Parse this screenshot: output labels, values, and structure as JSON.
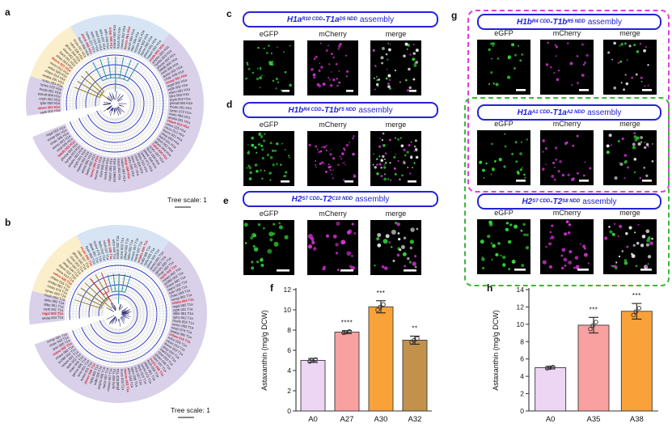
{
  "panels": {
    "a": "a",
    "b": "b",
    "c": "c",
    "d": "d",
    "e": "e",
    "f": "f",
    "g": "g",
    "h": "h"
  },
  "colors": {
    "title_blue": "#2323d9",
    "magenta_border": "#e03ce0",
    "green_border": "#3ab83a",
    "egfp_green": "#35d93c",
    "mcherry_magenta": "#d935d9",
    "merge_white": "#ededed",
    "tree_sector_lavender": "#d9d0ea",
    "tree_sector_cream": "#fbeecb",
    "tree_sector_blue": "#d6e4f4",
    "tree_circle_blue": "#2631c8"
  },
  "columns": [
    "eGFP",
    "mCherry",
    "merge"
  ],
  "trees": [
    {
      "panel": "a",
      "scale_text": "Tree scale: 1",
      "suffix": "H1a",
      "seed": 11,
      "gap": [
        248,
        262
      ],
      "sectors": [
        {
          "from": 330,
          "to": 38,
          "color": "#d6e4f4"
        },
        {
          "from": 38,
          "to": 248,
          "color": "#d9d0ea"
        },
        {
          "from": 262,
          "to": 288,
          "color": "#d9d0ea"
        },
        {
          "from": 288,
          "to": 330,
          "color": "#fbeecb"
        }
      ],
      "branches": [
        {
          "color": "#2e8ca8",
          "from": -28,
          "to": 30,
          "n": 7,
          "r0": 32,
          "r1": 58,
          "stem": 2
        },
        {
          "color": "#8f7d22",
          "from": 292,
          "to": 318,
          "n": 4,
          "r0": 20,
          "r1": 54,
          "stem": 305
        }
      ],
      "red_indexes": [
        3,
        11,
        19,
        30,
        38,
        47,
        55,
        63,
        74,
        85,
        93,
        99
      ],
      "leaves": [
        "maxon 063",
        "hatch 062",
        "mones 002",
        "hanch 081",
        "ranch 084",
        "rfam 006",
        "monen 001",
        "aureo 002",
        "bamo 082",
        "phmd 081",
        "ropam 002",
        "eryth 001",
        "amphs 002",
        "hynda 003",
        "phnsw 002",
        "fabdb 002",
        "nrcb 005",
        "aureo 001",
        "chaic 005",
        "sorap 001",
        "regal 002",
        "wyth 002",
        "stano 001",
        "tylor 003",
        "eryth 002",
        "pseud 004",
        "rhodo 061",
        "synec 072",
        "nosto 083",
        "anaba 091",
        "chlam 014",
        "volvo 025",
        "micro 012",
        "therm 021",
        "strep 033",
        "bacil 041",
        "clost 052",
        "gloeo 044",
        "calot 036",
        "scyto 047",
        "fisch 058",
        "plank 069",
        "cyano 071",
        "lepto 015",
        "oscil 026",
        "spiru 037",
        "arthr 048",
        "tolyp 059"
      ]
    },
    {
      "panel": "b",
      "scale_text": "Tree scale: 1",
      "suffix": "T1a",
      "seed": 29,
      "gap": [
        250,
        263
      ],
      "sectors": [
        {
          "from": 332,
          "to": 35,
          "color": "#d6e4f4"
        },
        {
          "from": 35,
          "to": 250,
          "color": "#d9d0ea"
        },
        {
          "from": 263,
          "to": 285,
          "color": "#d9d0ea"
        },
        {
          "from": 285,
          "to": 332,
          "color": "#fbeecb"
        }
      ],
      "branches": [
        {
          "color": "#2e8ca8",
          "from": -15,
          "to": 18,
          "n": 5,
          "r0": 28,
          "r1": 50,
          "stem": 2
        },
        {
          "color": "#8f7d22",
          "from": 288,
          "to": 330,
          "n": 6,
          "r0": 22,
          "r1": 56,
          "stem": 310
        },
        {
          "color": "#cc3333",
          "from": 322,
          "to": 338,
          "n": 2,
          "r0": 30,
          "r1": 55,
          "stem": 330
        }
      ],
      "red_indexes": [
        6,
        14,
        22,
        31,
        40,
        48,
        57,
        66,
        75,
        84,
        92,
        98
      ],
      "leaves": [
        "maxon 002",
        "mons 003",
        "phaul 002",
        "spho 082",
        "mosoo 007",
        "narck 007",
        "amphs 005",
        "ivdbl 006",
        "nytla 005",
        "joiner 006",
        "aureo 001",
        "lorio 001",
        "genso 005",
        "chaic 005",
        "wyth 002",
        "ropam 002",
        "px386 002",
        "chaso 082",
        "stano 002",
        "tylor 005",
        "chaic 003",
        "sorap 081",
        "rebita 004",
        "regal 002",
        "wyth 001",
        "stibe 051",
        "spho 062",
        "rhodo 052",
        "synec 063",
        "nosto 074",
        "anaba 082",
        "chlam 015",
        "volvo 026",
        "micro 013",
        "therm 022",
        "strep 034",
        "bacil 042",
        "clost 053",
        "gloeo 045",
        "calot 037",
        "scyto 048",
        "fisch 059",
        "plank 061",
        "cyano 073",
        "lepto 016",
        "oscil 027",
        "spiru 038",
        "arthr 049"
      ]
    }
  ],
  "assemblies": {
    "c": {
      "title": {
        "h": "H1a",
        "h_sub": "R10 CDD",
        "sep": "-",
        "t": "T1a",
        "t_sub": "D5 NDD",
        "word": "assembly"
      }
    },
    "d": {
      "title": {
        "h": "H1b",
        "h_sub": "R4 CDD",
        "sep": "-",
        "t": "T1b",
        "t_sub": "F5 NDD",
        "word": "assembly"
      }
    },
    "e": {
      "title": {
        "h": "H2",
        "h_sub": "S7 CDD",
        "sep": "-",
        "t": "T2",
        "t_sub": "C10 NDD",
        "word": "assembly"
      }
    },
    "g1": {
      "title": {
        "h": "H1b",
        "h_sub": "R4 CDD",
        "sep": "-",
        "t": "T1b",
        "t_sub": "R5 NDD",
        "word": "assembly"
      }
    },
    "g2": {
      "title": {
        "h": "H1a",
        "h_sub": "A1 CDD",
        "sep": "-",
        "t": "T1a",
        "t_sub": "A2 NDD",
        "word": "assembly"
      }
    },
    "g3": {
      "title": {
        "h": "H2",
        "h_sub": "S7 CDD",
        "sep": "-",
        "t": "T2",
        "t_sub": "S8 NDD",
        "word": "assembly"
      }
    }
  },
  "chart_data": [
    {
      "panel": "f",
      "type": "bar",
      "categories": [
        "A0",
        "A27",
        "A30",
        "A32"
      ],
      "values": [
        5.0,
        7.8,
        10.3,
        7.0
      ],
      "errors": [
        0.2,
        0.15,
        0.6,
        0.4
      ],
      "significance": [
        "",
        "****",
        "***",
        "**"
      ],
      "bar_colors": [
        "#ecd6f4",
        "#f9a0a0",
        "#f9a23a",
        "#c2914c"
      ],
      "title": "",
      "xlabel": "",
      "ylabel": "Astaxanthin (mg/g DCW)",
      "ylim": [
        0,
        12
      ],
      "ystep": 2,
      "grid": false,
      "legend": "none"
    },
    {
      "panel": "h",
      "type": "bar",
      "categories": [
        "A0",
        "A35",
        "A38"
      ],
      "values": [
        5.0,
        9.9,
        11.5
      ],
      "errors": [
        0.15,
        0.9,
        0.9
      ],
      "significance": [
        "",
        "***",
        "***"
      ],
      "bar_colors": [
        "#ecd6f4",
        "#f9a0a0",
        "#f9a23a"
      ],
      "title": "",
      "xlabel": "",
      "ylabel": "Astaxanthin (mg/g DCW)",
      "ylim": [
        0,
        14
      ],
      "ystep": 2,
      "grid": false,
      "legend": "none"
    }
  ]
}
